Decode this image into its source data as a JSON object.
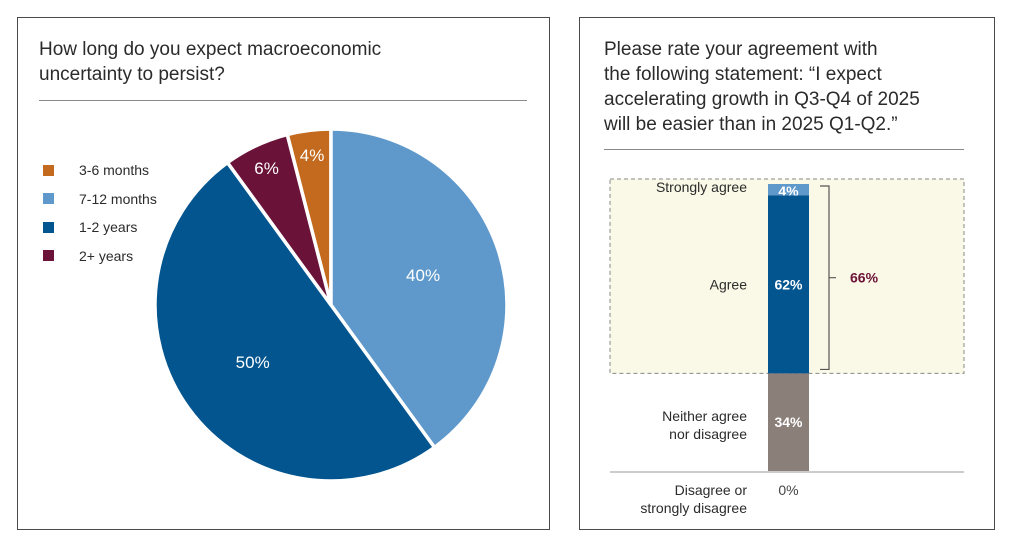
{
  "colors": {
    "orange": "#c46a1e",
    "light_blue": "#5f99cc",
    "dark_blue": "#03558f",
    "maroon": "#6b1238",
    "grey": "#8b7f7a",
    "highlight_fill": "#faf8e6",
    "bracket_text": "#6b1238"
  },
  "chart_data": [
    {
      "type": "pie",
      "title": "How long do you expect macroeconomic\nuncertainty to persist?",
      "slices": [
        {
          "label": "3-6 months",
          "value": 4,
          "display": "4%",
          "color": "#c46a1e"
        },
        {
          "label": "7-12 months",
          "value": 40,
          "display": "40%",
          "color": "#5f99cc"
        },
        {
          "label": "1-2 years",
          "value": 50,
          "display": "50%",
          "color": "#03558f"
        },
        {
          "label": "2+ years",
          "value": 6,
          "display": "6%",
          "color": "#6b1238"
        }
      ],
      "legend": "left"
    },
    {
      "type": "bar",
      "orientation": "vertical-stacked",
      "title": "Please rate your agreement with\nthe following statement: “I expect\naccelerating growth in Q3-Q4 of 2025\nwill be easier than in 2025 Q1-Q2.”",
      "categories": [
        "Strongly agree",
        "Agree",
        "Neither agree\nnor disagree",
        "Disagree or\nstrongly disagree"
      ],
      "values": [
        4,
        62,
        34,
        0
      ],
      "displays": [
        "4%",
        "62%",
        "34%",
        "0%"
      ],
      "colors": [
        "#5f99cc",
        "#03558f",
        "#8b7f7a",
        "#cccccc"
      ],
      "bracket": {
        "label": "66%",
        "covers": [
          "Strongly agree",
          "Agree"
        ]
      }
    }
  ]
}
